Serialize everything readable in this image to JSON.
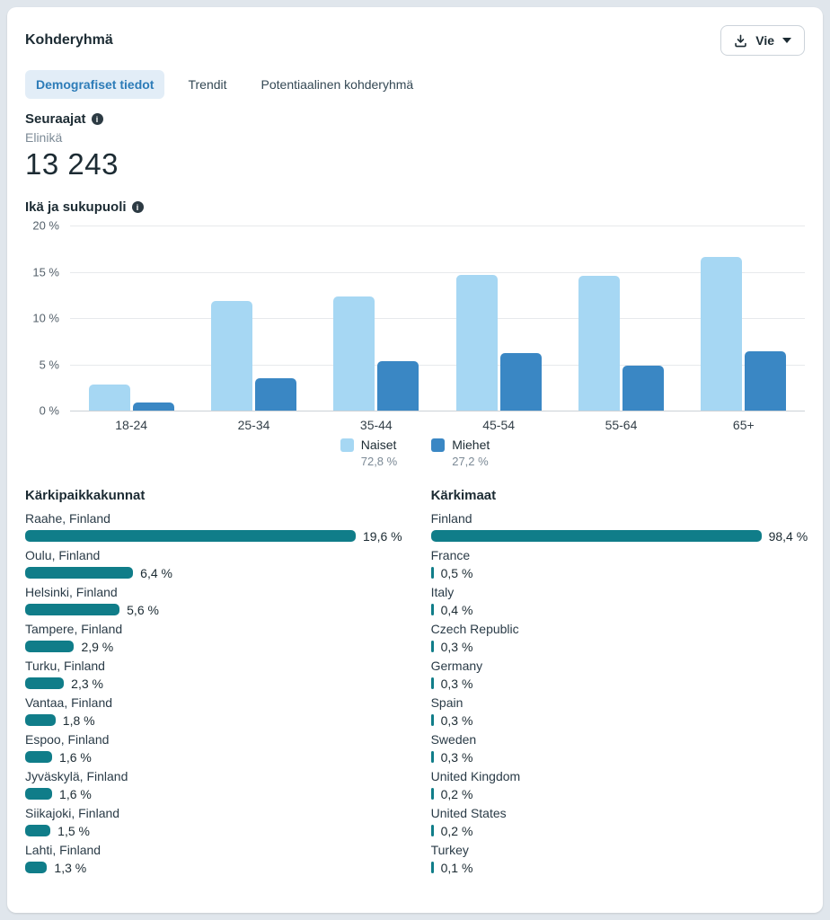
{
  "header": {
    "title": "Kohderyhmä",
    "export_label": "Vie"
  },
  "tabs": [
    {
      "label": "Demografiset tiedot",
      "active": true
    },
    {
      "label": "Trendit",
      "active": false
    },
    {
      "label": "Potentiaalinen kohderyhmä",
      "active": false
    }
  ],
  "followers": {
    "label": "Seuraajat",
    "period": "Elinikä",
    "count": "13 243"
  },
  "chart_data": {
    "type": "bar",
    "title": "Ikä ja sukupuoli",
    "categories": [
      "18-24",
      "25-34",
      "35-44",
      "45-54",
      "55-64",
      "65+"
    ],
    "series": [
      {
        "name": "Naiset",
        "total_label": "72,8 %",
        "color": "#a6d7f3",
        "values": [
          2.8,
          11.8,
          12.3,
          14.7,
          14.6,
          16.6
        ]
      },
      {
        "name": "Miehet",
        "total_label": "27,2 %",
        "color": "#3a87c4",
        "values": [
          0.9,
          3.5,
          5.3,
          6.2,
          4.9,
          6.4
        ]
      }
    ],
    "ylabel": "",
    "xlabel": "",
    "ylim": [
      0,
      20
    ],
    "yticks": [
      "20 %",
      "15 %",
      "10 %",
      "5 %",
      "0 %"
    ],
    "grid": true,
    "legend_position": "bottom"
  },
  "top_locations": {
    "title": "Kärkipaikkakunnat",
    "bar_color": "#107d89",
    "items": [
      {
        "name": "Raahe, Finland",
        "value": 19.6,
        "label": "19,6 %"
      },
      {
        "name": "Oulu, Finland",
        "value": 6.4,
        "label": "6,4 %"
      },
      {
        "name": "Helsinki, Finland",
        "value": 5.6,
        "label": "5,6 %"
      },
      {
        "name": "Tampere, Finland",
        "value": 2.9,
        "label": "2,9 %"
      },
      {
        "name": "Turku, Finland",
        "value": 2.3,
        "label": "2,3 %"
      },
      {
        "name": "Vantaa, Finland",
        "value": 1.8,
        "label": "1,8 %"
      },
      {
        "name": "Espoo, Finland",
        "value": 1.6,
        "label": "1,6 %"
      },
      {
        "name": "Jyväskylä, Finland",
        "value": 1.6,
        "label": "1,6 %"
      },
      {
        "name": "Siikajoki, Finland",
        "value": 1.5,
        "label": "1,5 %"
      },
      {
        "name": "Lahti, Finland",
        "value": 1.3,
        "label": "1,3 %"
      }
    ]
  },
  "top_countries": {
    "title": "Kärkimaat",
    "bar_color": "#107d89",
    "items": [
      {
        "name": "Finland",
        "value": 98.4,
        "label": "98,4 %"
      },
      {
        "name": "France",
        "value": 0.5,
        "label": "0,5 %"
      },
      {
        "name": "Italy",
        "value": 0.4,
        "label": "0,4 %"
      },
      {
        "name": "Czech Republic",
        "value": 0.3,
        "label": "0,3 %"
      },
      {
        "name": "Germany",
        "value": 0.3,
        "label": "0,3 %"
      },
      {
        "name": "Spain",
        "value": 0.3,
        "label": "0,3 %"
      },
      {
        "name": "Sweden",
        "value": 0.3,
        "label": "0,3 %"
      },
      {
        "name": "United Kingdom",
        "value": 0.2,
        "label": "0,2 %"
      },
      {
        "name": "United States",
        "value": 0.2,
        "label": "0,2 %"
      },
      {
        "name": "Turkey",
        "value": 0.1,
        "label": "0,1 %"
      }
    ]
  },
  "icons": {
    "export": "download-icon",
    "caret": "caret-down-icon",
    "info": "info-icon",
    "info_glyph": "i"
  }
}
